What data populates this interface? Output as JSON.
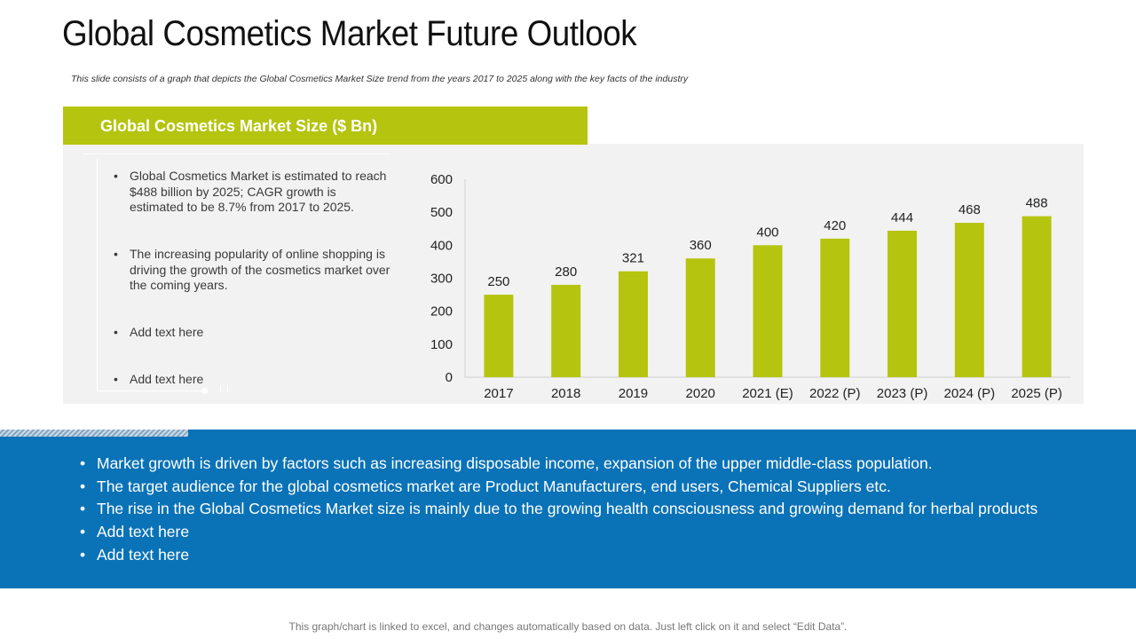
{
  "slide": {
    "title": "Global Cosmetics Market Future Outlook",
    "subtitle": "This slide consists of a graph that depicts the Global Cosmetics Market Size trend from the years 2017 to 2025 along with the key facts of the industry",
    "footer": "This graph/chart is linked to excel, and changes automatically based on data. Just left click on it and select “Edit Data”."
  },
  "panel": {
    "header": "Global Cosmetics Market Size ($ Bn)",
    "facts": [
      "Global Cosmetics Market is estimated to reach $488 billion by 2025; CAGR growth is estimated to be 8.7% from 2017 to 2025.",
      "The increasing popularity of online shopping is driving the growth of the cosmetics market over the coming years.",
      "Add text here",
      "Add text here"
    ]
  },
  "bottom": {
    "bullet_glyph": "•",
    "items": [
      "Market growth is driven by factors such as increasing disposable income, expansion of the upper middle-class population.",
      "The target audience for the global cosmetics market are Product Manufacturers, end users, Chemical Suppliers etc.",
      "The rise in the Global Cosmetics Market size is mainly due to the growing health consciousness and growing demand for herbal products",
      "Add text here",
      "Add text here"
    ]
  },
  "colors": {
    "accent_green": "#b5c40e",
    "band_blue": "#0a72b7",
    "panel_gray": "#f2f2f2"
  },
  "chart_data": {
    "type": "bar",
    "title": "Global Cosmetics Market Size ($ Bn)",
    "categories": [
      "2017",
      "2018",
      "2019",
      "2020",
      "2021 (E)",
      "2022 (P)",
      "2023 (P)",
      "2024 (P)",
      "2025 (P)"
    ],
    "values": [
      250,
      280,
      321,
      360,
      400,
      420,
      444,
      468,
      488
    ],
    "yticks": [
      0,
      100,
      200,
      300,
      400,
      500,
      600
    ],
    "ylim": [
      0,
      600
    ],
    "xlabel": "",
    "ylabel": "",
    "grid": false,
    "legend": "none",
    "data_labels": true,
    "bar_color": "#b5c40e"
  }
}
